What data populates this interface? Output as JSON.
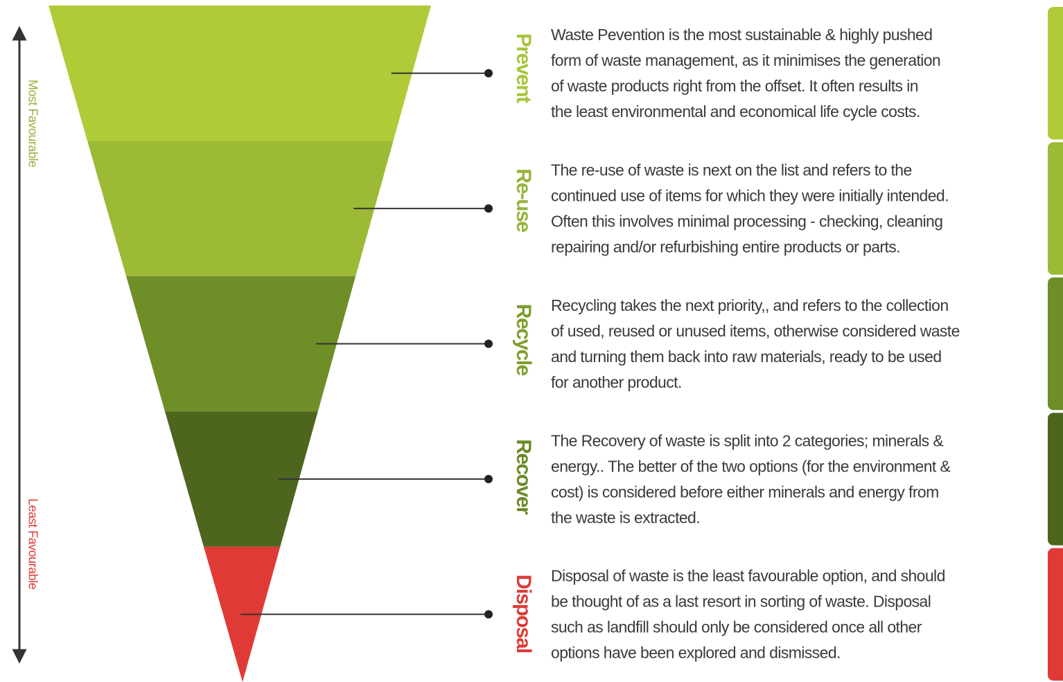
{
  "axis": {
    "top_label": "Most Favourable",
    "bottom_label": "Least Favourable"
  },
  "levels": [
    {
      "name": "Prevent",
      "color": "#afcb37",
      "label_color": "#a6c53a",
      "description": [
        "Waste Pevention is the most sustainable & highly pushed",
        "form of waste management, as it minimises the generation",
        "of waste products right from the offset. It often  results in",
        "the least environmental and economical life cycle costs."
      ]
    },
    {
      "name": "Re-use",
      "color": "#9cba35",
      "label_color": "#93b43a",
      "description": [
        "The re-use of waste is next on the list and refers to the",
        "continued use of items for which they were initially intended.",
        "Often this involves minimal processing - checking, cleaning",
        "repairing and/or refurbishing entire products or parts."
      ]
    },
    {
      "name": "Recycle",
      "color": "#6e8e28",
      "label_color": "#7d9e2c",
      "description": [
        "Recycling takes the next priority,, and refers to the collection",
        "of used, reused or unused items, otherwise considered waste",
        "and turning them back into raw materials, ready to be used",
        "for another product."
      ]
    },
    {
      "name": "Recover",
      "color": "#4e651e",
      "label_color": "#6b8a27",
      "description": [
        "The Recovery of waste is split into 2 categories; minerals &",
        "energy.. The better of the two options (for the environment &",
        "cost) is considered before either minerals and energy from",
        "the waste is extracted."
      ]
    },
    {
      "name": "Disposal",
      "color": "#e03a36",
      "label_color": "#de3a36",
      "description": [
        "Disposal of waste is the least favourable option, and should",
        "be thought of as a last resort in sorting of waste. Disposal",
        "such as landfill should only be considered once all other",
        "options have been explored and dismissed."
      ]
    }
  ]
}
